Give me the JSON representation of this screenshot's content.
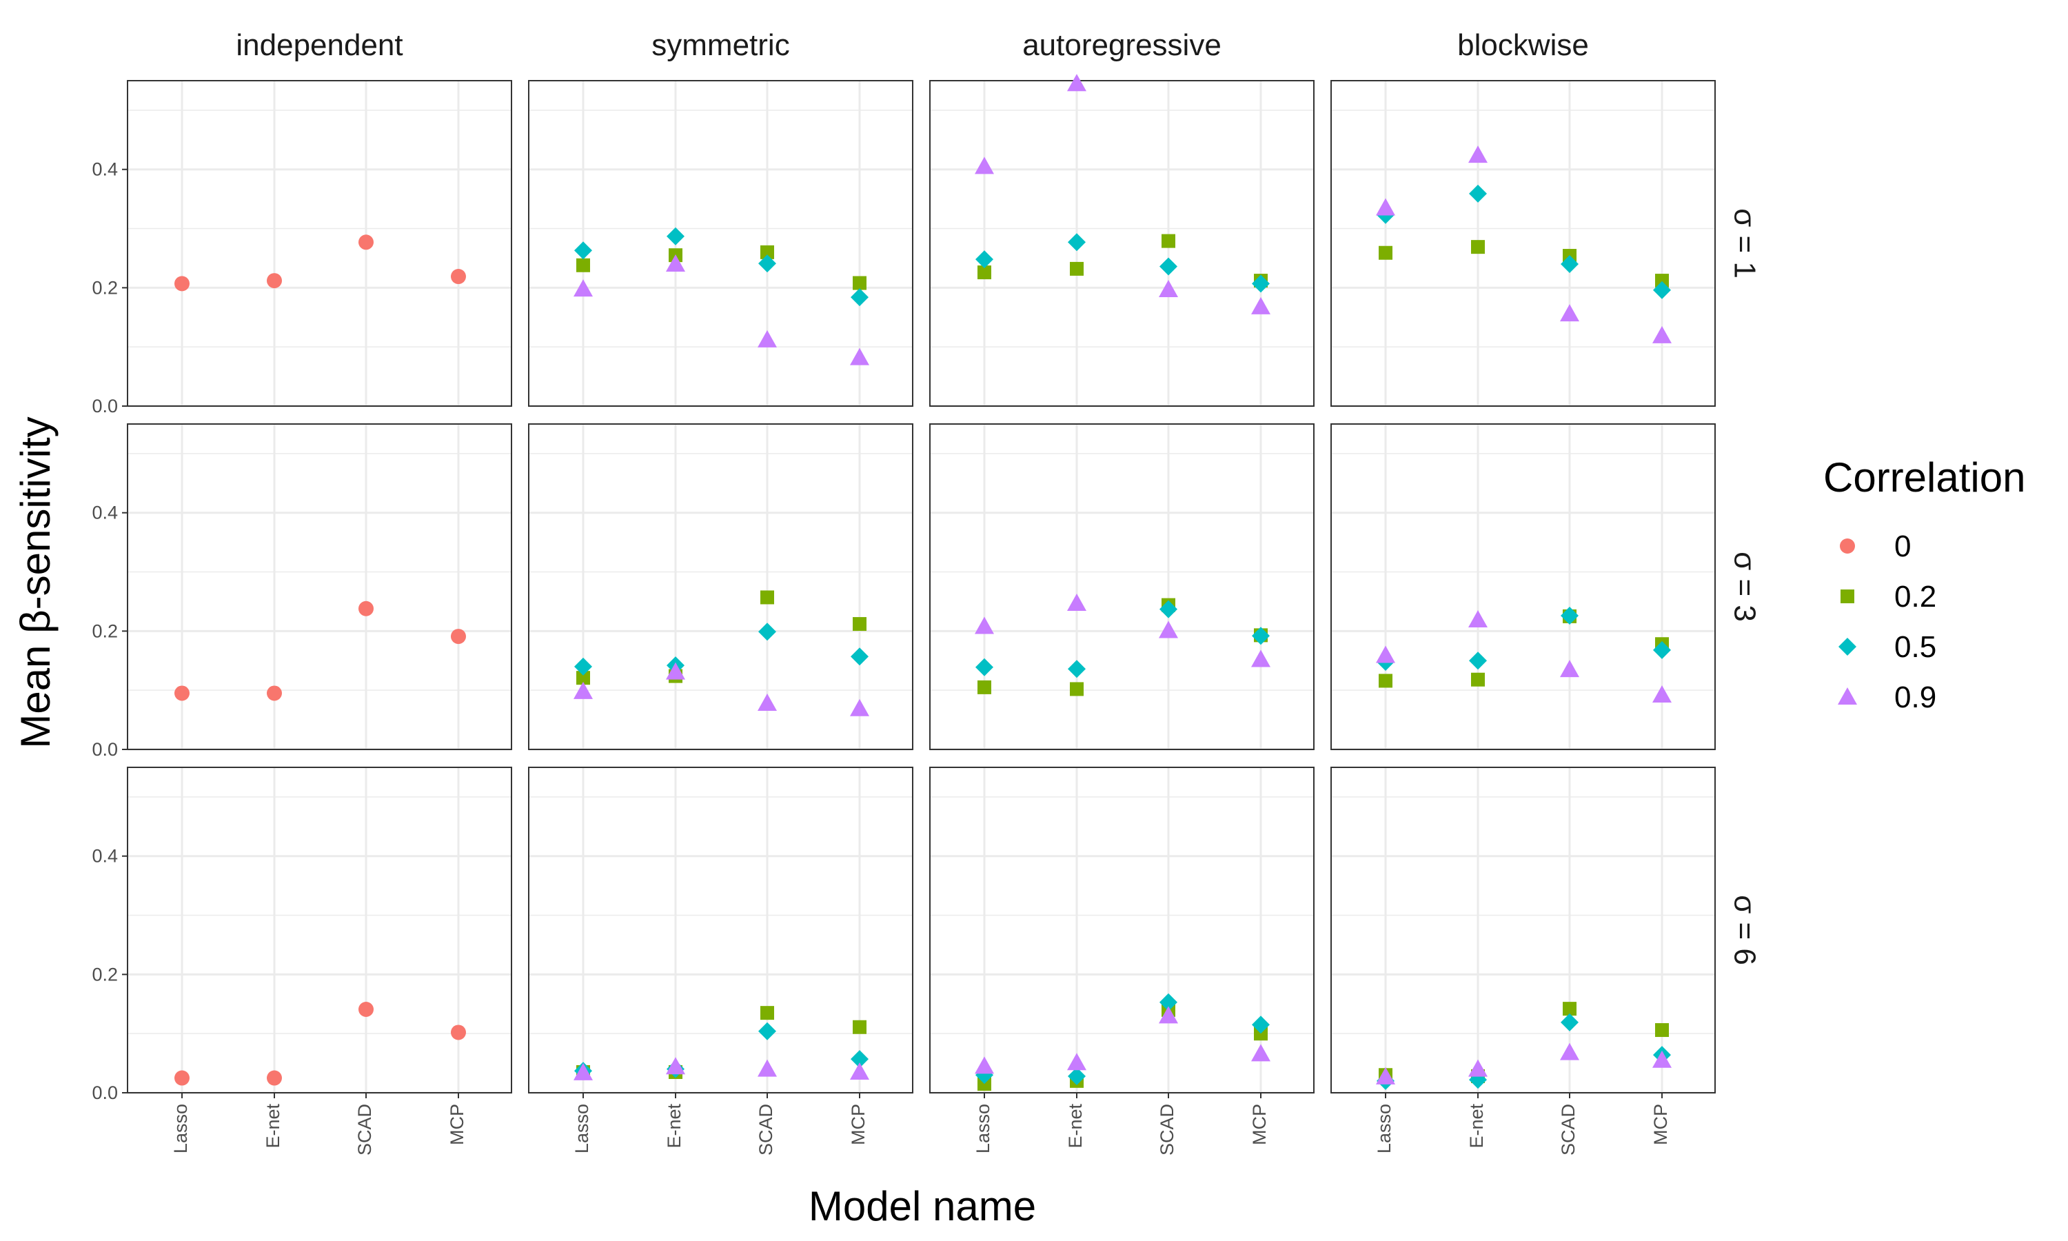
{
  "chart_data": {
    "type": "scatter",
    "xlabel": "Model name",
    "ylabel": "Mean β-sensitivity",
    "categories": [
      "Lasso",
      "E-net",
      "SCAD",
      "MCP"
    ],
    "yticks": [
      "0.0",
      "0.2",
      "0.4"
    ],
    "ytick_values": [
      0.0,
      0.2,
      0.4
    ],
    "ylim": [
      0.0,
      0.55
    ],
    "grid": true,
    "legend": {
      "title": "Correlation",
      "position": "right",
      "entries": [
        {
          "label": "0",
          "color": "#F8766D",
          "shape": "circle"
        },
        {
          "label": "0.2",
          "color": "#7CAE00",
          "shape": "square"
        },
        {
          "label": "0.5",
          "color": "#00BFC4",
          "shape": "diamond"
        },
        {
          "label": "0.9",
          "color": "#C77CFF",
          "shape": "triangle"
        }
      ]
    },
    "columns": [
      "independent",
      "symmetric",
      "autoregressive",
      "blockwise"
    ],
    "rows": [
      "σ = 1",
      "σ = 3",
      "σ = 6"
    ],
    "panels": [
      {
        "row": 0,
        "col": 0,
        "series": [
          {
            "correlation": "0",
            "values": [
              0.207,
              0.212,
              0.277,
              0.219
            ]
          }
        ]
      },
      {
        "row": 0,
        "col": 1,
        "series": [
          {
            "correlation": "0.2",
            "values": [
              0.238,
              0.255,
              0.26,
              0.208
            ]
          },
          {
            "correlation": "0.5",
            "values": [
              0.263,
              0.287,
              0.241,
              0.184
            ]
          },
          {
            "correlation": "0.9",
            "values": [
              0.198,
              0.24,
              0.112,
              0.082
            ]
          }
        ]
      },
      {
        "row": 0,
        "col": 2,
        "series": [
          {
            "correlation": "0.2",
            "values": [
              0.226,
              0.232,
              0.279,
              0.212
            ]
          },
          {
            "correlation": "0.5",
            "values": [
              0.248,
              0.277,
              0.236,
              0.207
            ]
          },
          {
            "correlation": "0.9",
            "values": [
              0.405,
              0.545,
              0.197,
              0.168
            ]
          }
        ]
      },
      {
        "row": 0,
        "col": 3,
        "series": [
          {
            "correlation": "0.2",
            "values": [
              0.259,
              0.269,
              0.254,
              0.212
            ]
          },
          {
            "correlation": "0.5",
            "values": [
              0.323,
              0.359,
              0.24,
              0.196
            ]
          },
          {
            "correlation": "0.9",
            "values": [
              0.335,
              0.424,
              0.156,
              0.119
            ]
          }
        ]
      },
      {
        "row": 1,
        "col": 0,
        "series": [
          {
            "correlation": "0",
            "values": [
              0.095,
              0.095,
              0.238,
              0.191
            ]
          }
        ]
      },
      {
        "row": 1,
        "col": 1,
        "series": [
          {
            "correlation": "0.2",
            "values": [
              0.121,
              0.124,
              0.257,
              0.212
            ]
          },
          {
            "correlation": "0.5",
            "values": [
              0.14,
              0.142,
              0.199,
              0.157
            ]
          },
          {
            "correlation": "0.9",
            "values": [
              0.098,
              0.131,
              0.078,
              0.069
            ]
          }
        ]
      },
      {
        "row": 1,
        "col": 2,
        "series": [
          {
            "correlation": "0.2",
            "values": [
              0.105,
              0.102,
              0.244,
              0.193
            ]
          },
          {
            "correlation": "0.5",
            "values": [
              0.139,
              0.136,
              0.237,
              0.192
            ]
          },
          {
            "correlation": "0.9",
            "values": [
              0.208,
              0.247,
              0.201,
              0.152
            ]
          }
        ]
      },
      {
        "row": 1,
        "col": 3,
        "series": [
          {
            "correlation": "0.2",
            "values": [
              0.116,
              0.118,
              0.225,
              0.178
            ]
          },
          {
            "correlation": "0.5",
            "values": [
              0.148,
              0.15,
              0.226,
              0.168
            ]
          },
          {
            "correlation": "0.9",
            "values": [
              0.159,
              0.219,
              0.135,
              0.092
            ]
          }
        ]
      },
      {
        "row": 2,
        "col": 0,
        "series": [
          {
            "correlation": "0",
            "values": [
              0.025,
              0.025,
              0.141,
              0.102
            ]
          }
        ]
      },
      {
        "row": 2,
        "col": 1,
        "series": [
          {
            "correlation": "0.2",
            "values": [
              0.035,
              0.035,
              0.135,
              0.111
            ]
          },
          {
            "correlation": "0.5",
            "values": [
              0.037,
              0.04,
              0.104,
              0.057
            ]
          },
          {
            "correlation": "0.9",
            "values": [
              0.034,
              0.044,
              0.04,
              0.035
            ]
          }
        ]
      },
      {
        "row": 2,
        "col": 2,
        "series": [
          {
            "correlation": "0.2",
            "values": [
              0.015,
              0.02,
              0.14,
              0.1
            ]
          },
          {
            "correlation": "0.5",
            "values": [
              0.03,
              0.028,
              0.153,
              0.115
            ]
          },
          {
            "correlation": "0.9",
            "values": [
              0.045,
              0.051,
              0.13,
              0.066
            ]
          }
        ]
      },
      {
        "row": 2,
        "col": 3,
        "series": [
          {
            "correlation": "0.2",
            "values": [
              0.03,
              0.028,
              0.142,
              0.106
            ]
          },
          {
            "correlation": "0.5",
            "values": [
              0.02,
              0.022,
              0.119,
              0.064
            ]
          },
          {
            "correlation": "0.9",
            "values": [
              0.027,
              0.04,
              0.068,
              0.055
            ]
          }
        ]
      }
    ]
  }
}
